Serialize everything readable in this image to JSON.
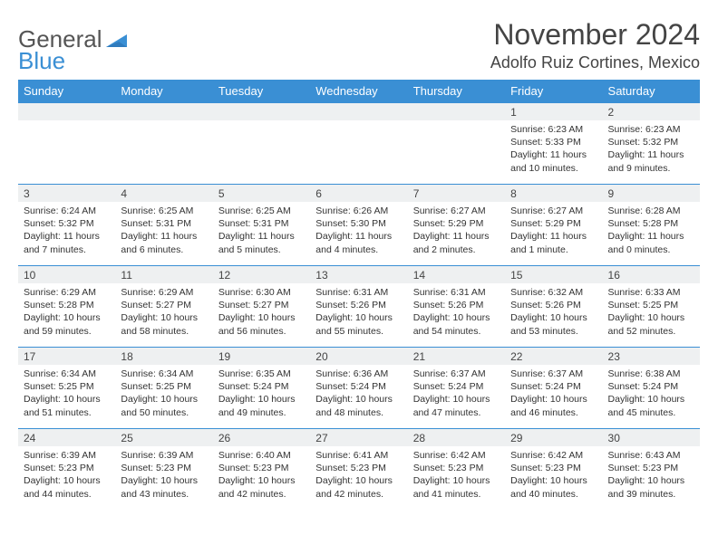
{
  "brand": {
    "text_main": "General",
    "text_accent": "Blue",
    "logo_color": "#3a8fd4"
  },
  "title": "November 2024",
  "location": "Adolfo Ruiz Cortines, Mexico",
  "colors": {
    "header_bg": "#3a8fd4",
    "header_text": "#ffffff",
    "daynum_bg": "#eef0f1",
    "cell_border": "#3a8fd4",
    "body_text": "#333333",
    "title_text": "#444444"
  },
  "typography": {
    "month_title_fontsize": 32,
    "location_fontsize": 18,
    "weekday_fontsize": 13,
    "daynum_fontsize": 12,
    "body_fontsize": 10.5
  },
  "weekdays": [
    "Sunday",
    "Monday",
    "Tuesday",
    "Wednesday",
    "Thursday",
    "Friday",
    "Saturday"
  ],
  "first_weekday_index": 5,
  "days": [
    {
      "n": 1,
      "sunrise": "6:23 AM",
      "sunset": "5:33 PM",
      "daylight": "11 hours and 10 minutes."
    },
    {
      "n": 2,
      "sunrise": "6:23 AM",
      "sunset": "5:32 PM",
      "daylight": "11 hours and 9 minutes."
    },
    {
      "n": 3,
      "sunrise": "6:24 AM",
      "sunset": "5:32 PM",
      "daylight": "11 hours and 7 minutes."
    },
    {
      "n": 4,
      "sunrise": "6:25 AM",
      "sunset": "5:31 PM",
      "daylight": "11 hours and 6 minutes."
    },
    {
      "n": 5,
      "sunrise": "6:25 AM",
      "sunset": "5:31 PM",
      "daylight": "11 hours and 5 minutes."
    },
    {
      "n": 6,
      "sunrise": "6:26 AM",
      "sunset": "5:30 PM",
      "daylight": "11 hours and 4 minutes."
    },
    {
      "n": 7,
      "sunrise": "6:27 AM",
      "sunset": "5:29 PM",
      "daylight": "11 hours and 2 minutes."
    },
    {
      "n": 8,
      "sunrise": "6:27 AM",
      "sunset": "5:29 PM",
      "daylight": "11 hours and 1 minute."
    },
    {
      "n": 9,
      "sunrise": "6:28 AM",
      "sunset": "5:28 PM",
      "daylight": "11 hours and 0 minutes."
    },
    {
      "n": 10,
      "sunrise": "6:29 AM",
      "sunset": "5:28 PM",
      "daylight": "10 hours and 59 minutes."
    },
    {
      "n": 11,
      "sunrise": "6:29 AM",
      "sunset": "5:27 PM",
      "daylight": "10 hours and 58 minutes."
    },
    {
      "n": 12,
      "sunrise": "6:30 AM",
      "sunset": "5:27 PM",
      "daylight": "10 hours and 56 minutes."
    },
    {
      "n": 13,
      "sunrise": "6:31 AM",
      "sunset": "5:26 PM",
      "daylight": "10 hours and 55 minutes."
    },
    {
      "n": 14,
      "sunrise": "6:31 AM",
      "sunset": "5:26 PM",
      "daylight": "10 hours and 54 minutes."
    },
    {
      "n": 15,
      "sunrise": "6:32 AM",
      "sunset": "5:26 PM",
      "daylight": "10 hours and 53 minutes."
    },
    {
      "n": 16,
      "sunrise": "6:33 AM",
      "sunset": "5:25 PM",
      "daylight": "10 hours and 52 minutes."
    },
    {
      "n": 17,
      "sunrise": "6:34 AM",
      "sunset": "5:25 PM",
      "daylight": "10 hours and 51 minutes."
    },
    {
      "n": 18,
      "sunrise": "6:34 AM",
      "sunset": "5:25 PM",
      "daylight": "10 hours and 50 minutes."
    },
    {
      "n": 19,
      "sunrise": "6:35 AM",
      "sunset": "5:24 PM",
      "daylight": "10 hours and 49 minutes."
    },
    {
      "n": 20,
      "sunrise": "6:36 AM",
      "sunset": "5:24 PM",
      "daylight": "10 hours and 48 minutes."
    },
    {
      "n": 21,
      "sunrise": "6:37 AM",
      "sunset": "5:24 PM",
      "daylight": "10 hours and 47 minutes."
    },
    {
      "n": 22,
      "sunrise": "6:37 AM",
      "sunset": "5:24 PM",
      "daylight": "10 hours and 46 minutes."
    },
    {
      "n": 23,
      "sunrise": "6:38 AM",
      "sunset": "5:24 PM",
      "daylight": "10 hours and 45 minutes."
    },
    {
      "n": 24,
      "sunrise": "6:39 AM",
      "sunset": "5:23 PM",
      "daylight": "10 hours and 44 minutes."
    },
    {
      "n": 25,
      "sunrise": "6:39 AM",
      "sunset": "5:23 PM",
      "daylight": "10 hours and 43 minutes."
    },
    {
      "n": 26,
      "sunrise": "6:40 AM",
      "sunset": "5:23 PM",
      "daylight": "10 hours and 42 minutes."
    },
    {
      "n": 27,
      "sunrise": "6:41 AM",
      "sunset": "5:23 PM",
      "daylight": "10 hours and 42 minutes."
    },
    {
      "n": 28,
      "sunrise": "6:42 AM",
      "sunset": "5:23 PM",
      "daylight": "10 hours and 41 minutes."
    },
    {
      "n": 29,
      "sunrise": "6:42 AM",
      "sunset": "5:23 PM",
      "daylight": "10 hours and 40 minutes."
    },
    {
      "n": 30,
      "sunrise": "6:43 AM",
      "sunset": "5:23 PM",
      "daylight": "10 hours and 39 minutes."
    }
  ],
  "labels": {
    "sunrise": "Sunrise:",
    "sunset": "Sunset:",
    "daylight": "Daylight:"
  }
}
